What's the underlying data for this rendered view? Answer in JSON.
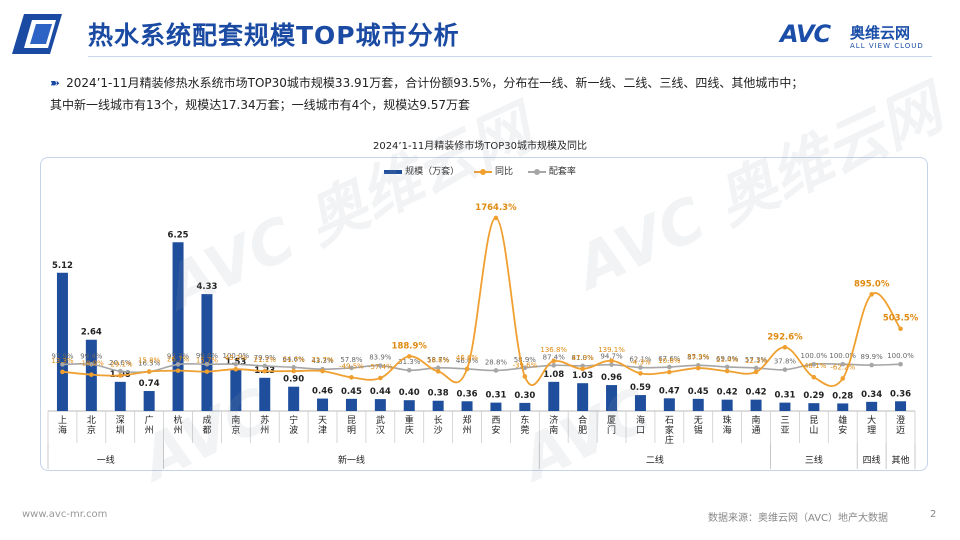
{
  "header": {
    "title": "热水系统配套规模TOP城市分析",
    "logo_mark": "AVC",
    "logo_cn": "奥维云网",
    "logo_en": "ALL VIEW CLOUD"
  },
  "summary": {
    "line1": "2024’1-11月精装修热水系统市场TOP30城市规模33.91万套，合计份额93.5%，分布在一线、新一线、二线、三线、四线、其他城市中；",
    "line2": "其中新一线城市有13个，规模达17.34万套；一线城市有4个，规模达9.57万套"
  },
  "footer": {
    "left": "www.avc-mr.com",
    "source": "数据来源：奥维云网（AVC）地产大数据",
    "page": "2"
  },
  "colors": {
    "bar": "#1f4e9c",
    "yoy": "#f0a030",
    "rate": "#a6a6a6",
    "title": "#1b4aa3"
  },
  "chart_data": {
    "type": "bar",
    "title": "2024’1-11月精装修市场TOP30城市规模及同比",
    "legend": [
      "规模（万套）",
      "同比",
      "配套率"
    ],
    "legend_position": "top",
    "categories": [
      "上海",
      "北京",
      "深圳",
      "广州",
      "杭州",
      "成都",
      "南京",
      "苏州",
      "宁波",
      "天津",
      "昆明",
      "武汉",
      "重庆",
      "长沙",
      "郑州",
      "西安",
      "东莞",
      "济南",
      "合肥",
      "厦门",
      "海口",
      "石家庄",
      "无锡",
      "珠海",
      "南通",
      "三亚",
      "昆山",
      "雄安",
      "大理",
      "澄迈"
    ],
    "groups": [
      {
        "name": "一线",
        "count": 4
      },
      {
        "name": "新一线",
        "count": 13
      },
      {
        "name": "二线",
        "count": 8
      },
      {
        "name": "三线",
        "count": 3
      },
      {
        "name": "四线",
        "count": 1
      },
      {
        "name": "其他",
        "count": 1
      }
    ],
    "series": [
      {
        "name": "规模（万套）",
        "type": "bar",
        "values": [
          5.12,
          2.64,
          1.08,
          0.74,
          6.25,
          4.33,
          1.53,
          1.23,
          0.9,
          0.46,
          0.45,
          0.44,
          0.4,
          0.38,
          0.36,
          0.31,
          0.3,
          1.08,
          1.03,
          0.96,
          0.59,
          0.47,
          0.45,
          0.42,
          0.42,
          0.31,
          0.29,
          0.28,
          0.34,
          0.36
        ]
      },
      {
        "name": "同比",
        "type": "line",
        "values": [
          13.3,
          -18.9,
          -29.1,
          15.8,
          26.7,
          15.7,
          43.2,
          21.1,
          21.7,
          21.7,
          -49.5,
          -57.4,
          188.9,
          18.6,
          46.6,
          1764.3,
          -39.6,
          136.8,
          47.3,
          139.1,
          -4.3,
          10.6,
          55.9,
          21.4,
          12.1,
          292.6,
          -48.1,
          -62.2,
          895.0,
          503.5
        ],
        "labels": [
          "13.3%",
          "-18.9%",
          "-29.1%",
          "15.8%",
          "26.7%",
          "15.7%",
          "43.2%",
          "21.1%",
          "21.7%",
          "21.7%",
          "-49.5%",
          "-57.4%",
          "188.9%",
          "18.6%",
          "46.6%",
          "1764.3%",
          "-39.6%",
          "136.8%",
          "47.3%",
          "139.1%",
          "-4.3%",
          "10.6%",
          "55.9%",
          "21.4%",
          "12.1%",
          "292.6%",
          "-48.1%",
          "-62.2%",
          "895.0%",
          "503.5%"
        ]
      },
      {
        "name": "配套率",
        "type": "line",
        "values": [
          97.9,
          99.4,
          20.6,
          16.3,
          97.7,
          99.6,
          100.0,
          79.9,
          64.6,
          43.3,
          57.8,
          83.9,
          31.3,
          58.7,
          46.0,
          28.8,
          58.9,
          87.4,
          81.0,
          94.7,
          62.1,
          67.6,
          87.3,
          69.0,
          57.3,
          37.8,
          100.0,
          100.0,
          89.9,
          100.0
        ],
        "labels": [
          "97.9%",
          "99.4%",
          "20.6%",
          "16.3%",
          "97.7%",
          "99.6%",
          "100.0%",
          "79.9%",
          "64.6%",
          "43.3%",
          "57.8%",
          "83.9%",
          "31.3%",
          "58.7%",
          "46.0%",
          "28.8%",
          "58.9%",
          "87.4%",
          "81.0%",
          "94.7%",
          "62.1%",
          "67.6%",
          "87.3%",
          "69.0%",
          "57.3%",
          "37.8%",
          "100.0%",
          "100.0%",
          "89.9%",
          "100.0%"
        ]
      }
    ]
  }
}
